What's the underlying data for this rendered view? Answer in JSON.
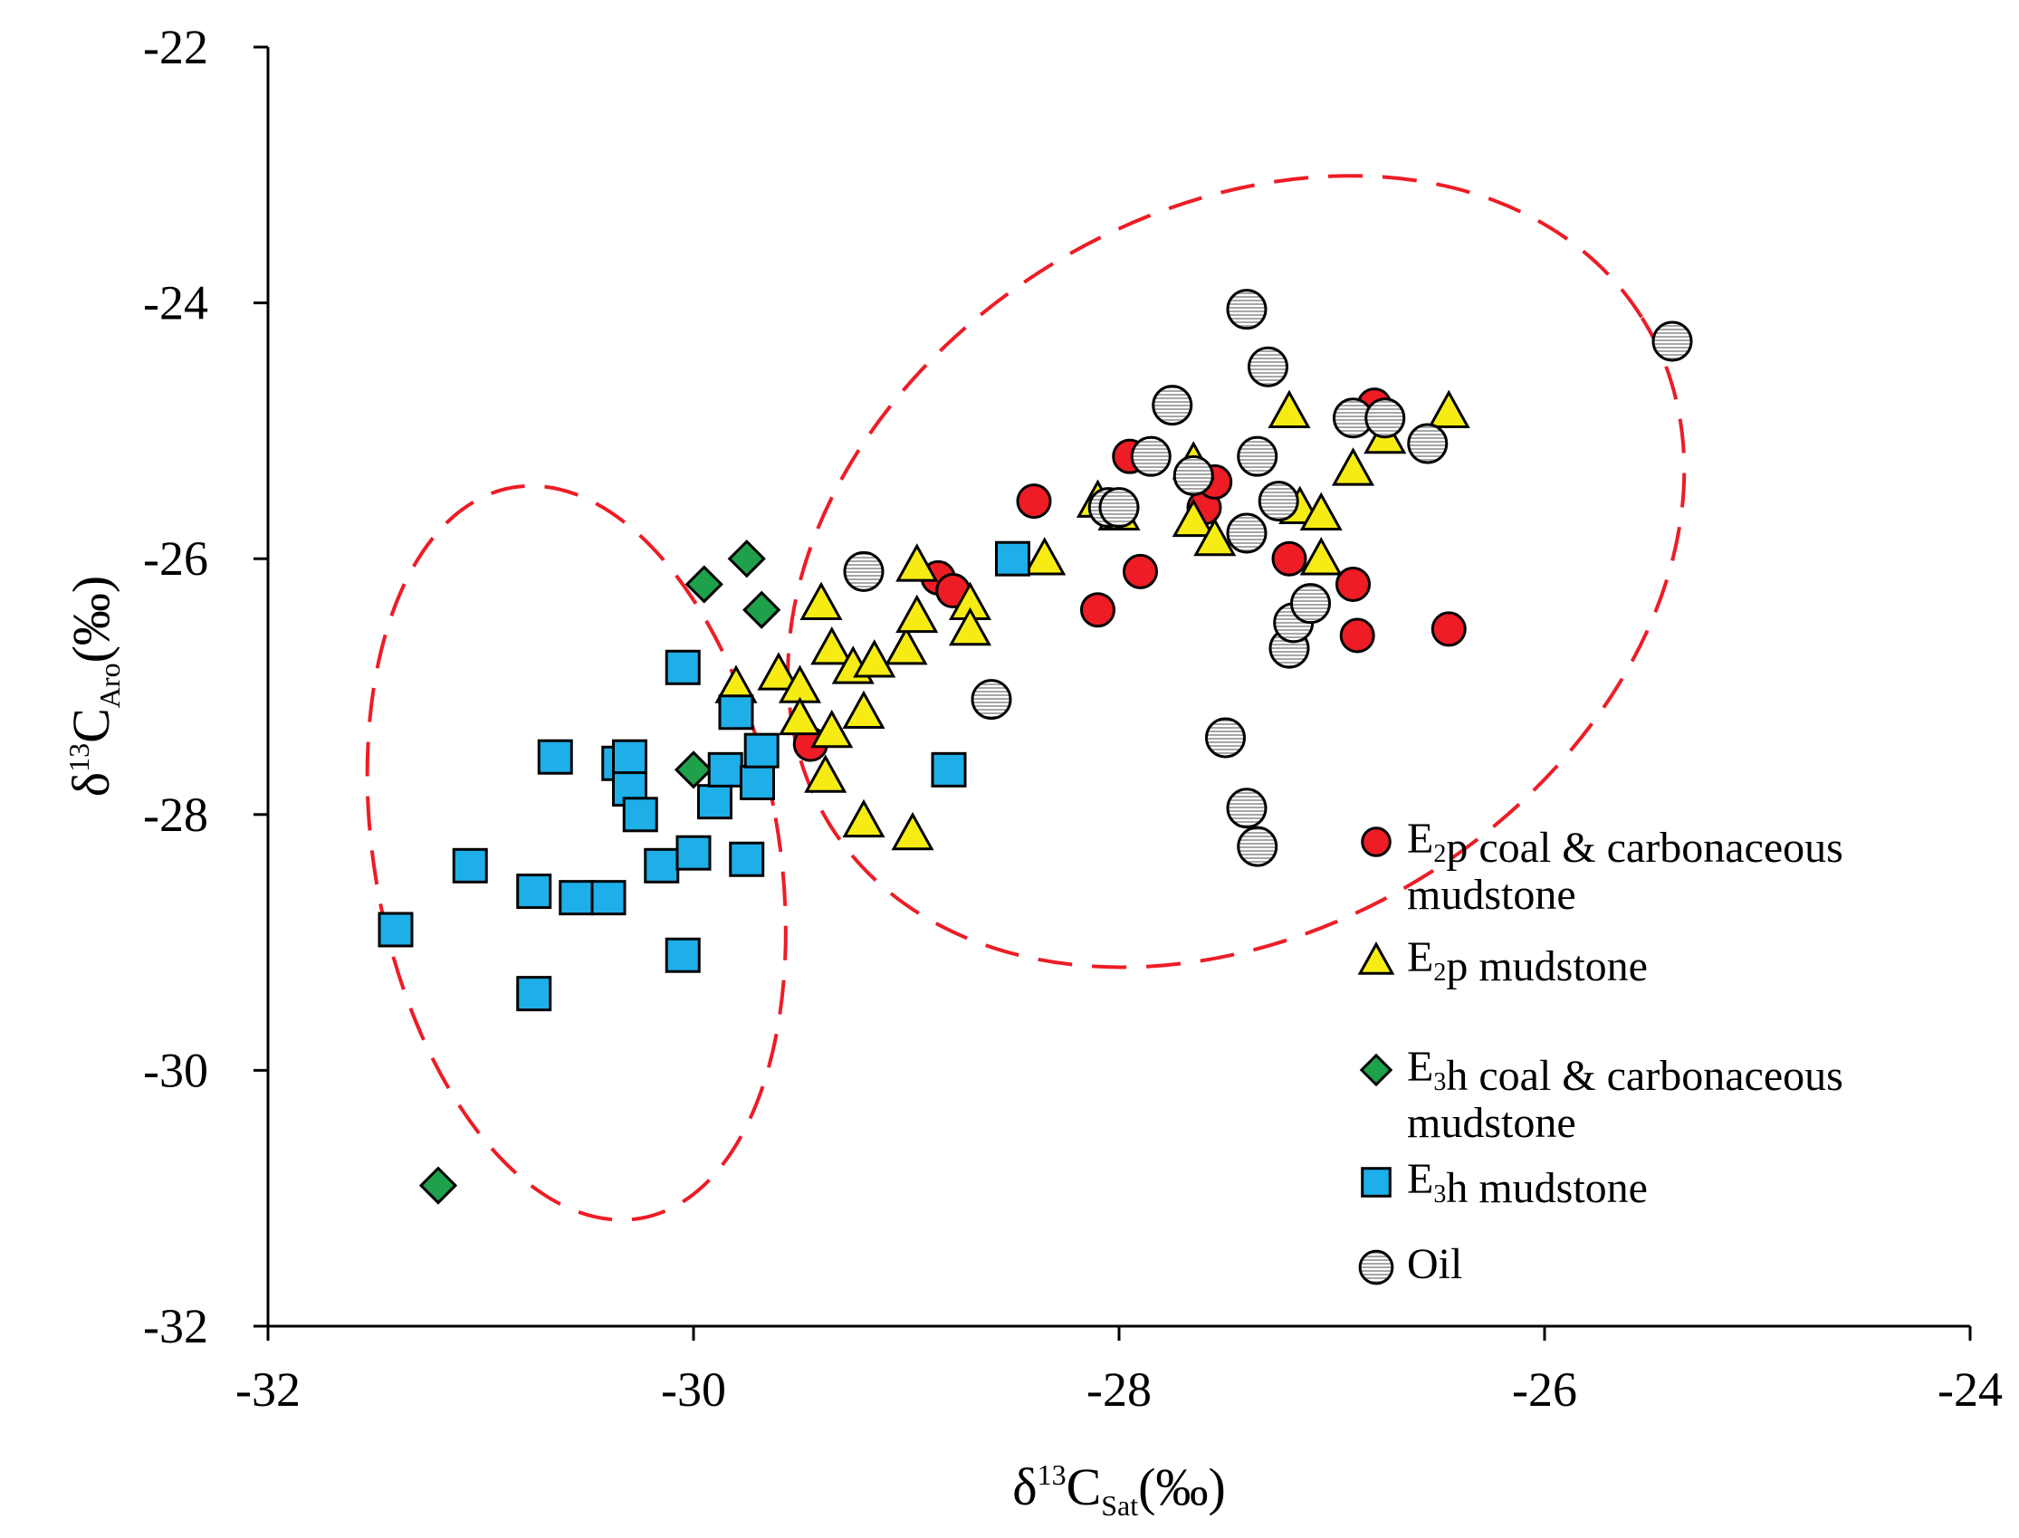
{
  "chart_data": {
    "type": "scatter",
    "title": "",
    "xlabel": "δ13CSat(‰)",
    "ylabel": "δ13CAro(‰)",
    "xlabel_parts": {
      "delta": "δ",
      "sup": "13",
      "base": "C",
      "sub": "Sat",
      "unit": "(‰)"
    },
    "ylabel_parts": {
      "delta": "δ",
      "sup": "13",
      "base": "C",
      "sub": "Aro",
      "unit": "(‰)"
    },
    "xlim": [
      -32,
      -24
    ],
    "ylim": [
      -32,
      -22
    ],
    "xticks": [
      -32,
      -30,
      -28,
      -26,
      -24
    ],
    "yticks": [
      -32,
      -30,
      -28,
      -26,
      -24,
      -22
    ],
    "xtick_labels": [
      "-32",
      "-30",
      "-28",
      "-26",
      "-24"
    ],
    "ytick_labels": [
      "-32",
      "-30",
      "-28",
      "-26",
      "-24",
      "-22"
    ],
    "grid": false,
    "legend_position": "right",
    "series": [
      {
        "name": "E2p coal & carbonaceous mudstone",
        "legend_lines": [
          [
            {
              "t": "E"
            },
            {
              "t": "2",
              "sub": true
            },
            {
              "t": "p coal & carbonaceous"
            }
          ],
          [
            {
              "t": "mudstone"
            }
          ]
        ],
        "marker": "circle",
        "color": "#ee1c25",
        "points": [
          [
            -29.45,
            -27.45
          ],
          [
            -28.85,
            -26.15
          ],
          [
            -28.78,
            -26.25
          ],
          [
            -28.4,
            -25.55
          ],
          [
            -28.1,
            -26.4
          ],
          [
            -27.95,
            -25.2
          ],
          [
            -27.9,
            -26.1
          ],
          [
            -27.6,
            -25.6
          ],
          [
            -27.55,
            -25.4
          ],
          [
            -27.2,
            -26.0
          ],
          [
            -26.9,
            -26.2
          ],
          [
            -26.88,
            -26.6
          ],
          [
            -26.8,
            -24.8
          ],
          [
            -26.45,
            -26.55
          ]
        ]
      },
      {
        "name": "E2p mudstone",
        "legend_lines": [
          [
            {
              "t": "E"
            },
            {
              "t": "2",
              "sub": true
            },
            {
              "t": "p mudstone"
            }
          ]
        ],
        "marker": "triangle",
        "color": "#f6ec13",
        "points": [
          [
            -29.8,
            -27.0
          ],
          [
            -29.6,
            -26.9
          ],
          [
            -29.5,
            -27.0
          ],
          [
            -29.5,
            -27.25
          ],
          [
            -29.4,
            -26.35
          ],
          [
            -29.35,
            -26.7
          ],
          [
            -29.35,
            -27.35
          ],
          [
            -29.38,
            -27.7
          ],
          [
            -29.25,
            -26.85
          ],
          [
            -29.2,
            -27.2
          ],
          [
            -29.2,
            -28.05
          ],
          [
            -29.15,
            -26.8
          ],
          [
            -29.0,
            -26.7
          ],
          [
            -28.95,
            -26.45
          ],
          [
            -28.95,
            -26.05
          ],
          [
            -28.97,
            -28.15
          ],
          [
            -28.7,
            -26.35
          ],
          [
            -28.7,
            -26.55
          ],
          [
            -28.35,
            -26.0
          ],
          [
            -28.1,
            -25.55
          ],
          [
            -28.0,
            -25.65
          ],
          [
            -27.65,
            -25.25
          ],
          [
            -27.65,
            -25.7
          ],
          [
            -27.55,
            -25.85
          ],
          [
            -27.2,
            -24.85
          ],
          [
            -27.15,
            -25.6
          ],
          [
            -27.05,
            -25.65
          ],
          [
            -27.05,
            -26.0
          ],
          [
            -26.9,
            -25.3
          ],
          [
            -26.75,
            -25.05
          ],
          [
            -26.45,
            -24.85
          ]
        ]
      },
      {
        "name": "E3h coal & carbonaceous mudstone",
        "legend_lines": [
          [
            {
              "t": "E"
            },
            {
              "t": "3",
              "sub": true
            },
            {
              "t": "h coal & carbonaceous"
            }
          ],
          [
            {
              "t": "mudstone"
            }
          ]
        ],
        "marker": "diamond",
        "color": "#1fa04a",
        "points": [
          [
            -31.2,
            -30.9
          ],
          [
            -30.0,
            -27.65
          ],
          [
            -29.95,
            -26.2
          ],
          [
            -29.75,
            -26.0
          ],
          [
            -29.68,
            -26.4
          ]
        ]
      },
      {
        "name": "E3h mudstone",
        "legend_lines": [
          [
            {
              "t": "E"
            },
            {
              "t": "3",
              "sub": true
            },
            {
              "t": "h mudstone"
            }
          ]
        ],
        "marker": "square",
        "color": "#1eaee8",
        "points": [
          [
            -31.4,
            -28.9
          ],
          [
            -31.05,
            -28.4
          ],
          [
            -30.75,
            -28.6
          ],
          [
            -30.75,
            -29.4
          ],
          [
            -30.65,
            -27.55
          ],
          [
            -30.55,
            -28.65
          ],
          [
            -30.4,
            -28.65
          ],
          [
            -30.35,
            -27.6
          ],
          [
            -30.3,
            -27.55
          ],
          [
            -30.3,
            -27.8
          ],
          [
            -30.25,
            -28.0
          ],
          [
            -30.15,
            -28.4
          ],
          [
            -30.05,
            -26.85
          ],
          [
            -30.05,
            -29.1
          ],
          [
            -30.0,
            -28.3
          ],
          [
            -29.9,
            -27.9
          ],
          [
            -29.85,
            -27.65
          ],
          [
            -29.8,
            -27.2
          ],
          [
            -29.75,
            -28.35
          ],
          [
            -29.7,
            -27.75
          ],
          [
            -29.68,
            -27.5
          ],
          [
            -28.8,
            -27.65
          ],
          [
            -28.5,
            -26.0
          ]
        ]
      },
      {
        "name": "Oil",
        "legend_lines": [
          [
            {
              "t": "Oil"
            }
          ]
        ],
        "marker": "hatched-circle",
        "color": "#a6a6a6",
        "points": [
          [
            -29.2,
            -26.1
          ],
          [
            -28.6,
            -27.1
          ],
          [
            -28.05,
            -25.6
          ],
          [
            -28.0,
            -25.6
          ],
          [
            -27.85,
            -25.2
          ],
          [
            -27.75,
            -24.8
          ],
          [
            -27.65,
            -25.35
          ],
          [
            -27.5,
            -27.4
          ],
          [
            -27.4,
            -24.05
          ],
          [
            -27.4,
            -25.8
          ],
          [
            -27.4,
            -27.95
          ],
          [
            -27.35,
            -28.25
          ],
          [
            -27.35,
            -25.2
          ],
          [
            -27.3,
            -24.5
          ],
          [
            -27.25,
            -25.55
          ],
          [
            -27.2,
            -26.7
          ],
          [
            -27.18,
            -26.5
          ],
          [
            -27.1,
            -26.35
          ],
          [
            -26.9,
            -24.9
          ],
          [
            -26.75,
            -24.9
          ],
          [
            -26.55,
            -25.1
          ],
          [
            -25.4,
            -24.3
          ]
        ]
      }
    ],
    "ellipses": [
      {
        "name": "E3h source group",
        "color": "#ee1c25",
        "style": "dashed",
        "cx": -30.55,
        "cy": -28.3,
        "rx": 0.95,
        "ry": 2.9,
        "rotation_deg": -10
      },
      {
        "name": "E2p source and oil group",
        "color": "#ee1c25",
        "style": "dashed",
        "cx": -27.45,
        "cy": -26.1,
        "rx": 2.25,
        "ry": 2.8,
        "rotation_deg": -32
      }
    ]
  }
}
